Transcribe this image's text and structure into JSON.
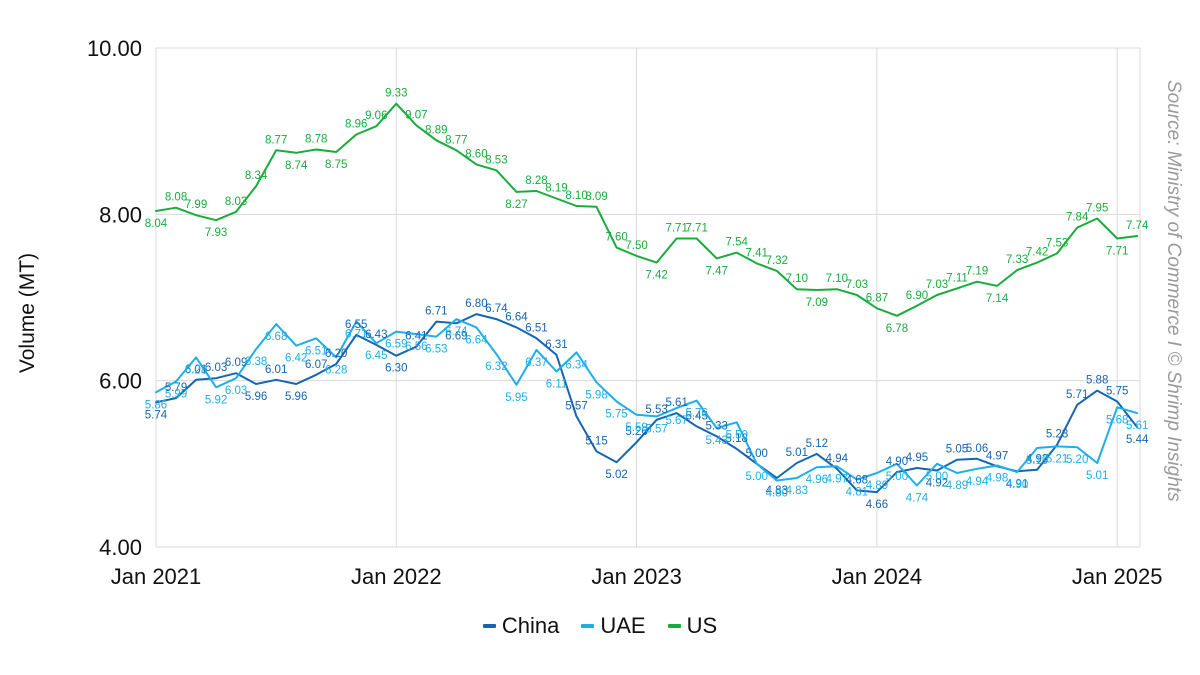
{
  "source_note": "Source: Ministry of Commerce I © Shrimp Insights",
  "chart_data": {
    "type": "line",
    "ylabel": "Volume (MT)",
    "xlabel": "",
    "ylim": [
      4,
      10
    ],
    "yticks": [
      "4.00",
      "6.00",
      "8.00",
      "10.00"
    ],
    "xticks": [
      "Jan 2021",
      "Jan 2022",
      "Jan 2023",
      "Jan 2024",
      "Jan 2025"
    ],
    "x_start": "2021-01",
    "x_end": "2025-02",
    "grid": true,
    "legend_position": "bottom",
    "series": [
      {
        "name": "China",
        "color": "#1565b0",
        "values": [
          5.74,
          5.79,
          6.01,
          6.03,
          6.09,
          5.96,
          6.01,
          5.96,
          6.07,
          6.2,
          6.55,
          6.43,
          6.3,
          6.41,
          6.71,
          6.69,
          6.8,
          6.74,
          6.64,
          6.51,
          6.31,
          5.57,
          5.15,
          5.02,
          5.26,
          5.53,
          5.61,
          5.45,
          5.33,
          5.18,
          5.0,
          4.83,
          5.01,
          5.12,
          4.94,
          4.68,
          4.66,
          4.9,
          4.95,
          4.92,
          5.05,
          5.06,
          4.97,
          4.91,
          4.93,
          5.23,
          5.71,
          5.88,
          5.75,
          5.44
        ]
      },
      {
        "name": "UAE",
        "color": "#1eaee8",
        "values": [
          5.86,
          5.99,
          6.28,
          5.92,
          6.03,
          6.38,
          6.68,
          6.42,
          6.51,
          6.28,
          6.71,
          6.45,
          6.59,
          6.56,
          6.53,
          6.74,
          6.64,
          6.32,
          5.95,
          6.37,
          6.11,
          6.34,
          5.98,
          5.75,
          5.59,
          5.57,
          5.67,
          5.76,
          5.43,
          5.5,
          5.0,
          4.8,
          4.83,
          4.96,
          4.97,
          4.81,
          4.89,
          5.0,
          4.74,
          5.0,
          4.89,
          4.94,
          4.98,
          4.9,
          5.19,
          5.21,
          5.2,
          5.01,
          5.68,
          5.61
        ]
      },
      {
        "name": "US",
        "color": "#1aab3d",
        "values": [
          8.04,
          8.08,
          7.99,
          7.93,
          8.03,
          8.34,
          8.77,
          8.74,
          8.78,
          8.75,
          8.96,
          9.06,
          9.33,
          9.07,
          8.89,
          8.77,
          8.6,
          8.53,
          8.27,
          8.28,
          8.19,
          8.1,
          8.09,
          7.6,
          7.5,
          7.42,
          7.71,
          7.71,
          7.47,
          7.54,
          7.41,
          7.32,
          7.1,
          7.09,
          7.1,
          7.03,
          6.87,
          6.78,
          6.9,
          7.03,
          7.11,
          7.19,
          7.14,
          7.33,
          7.42,
          7.53,
          7.84,
          7.95,
          7.71,
          7.74
        ]
      }
    ]
  }
}
